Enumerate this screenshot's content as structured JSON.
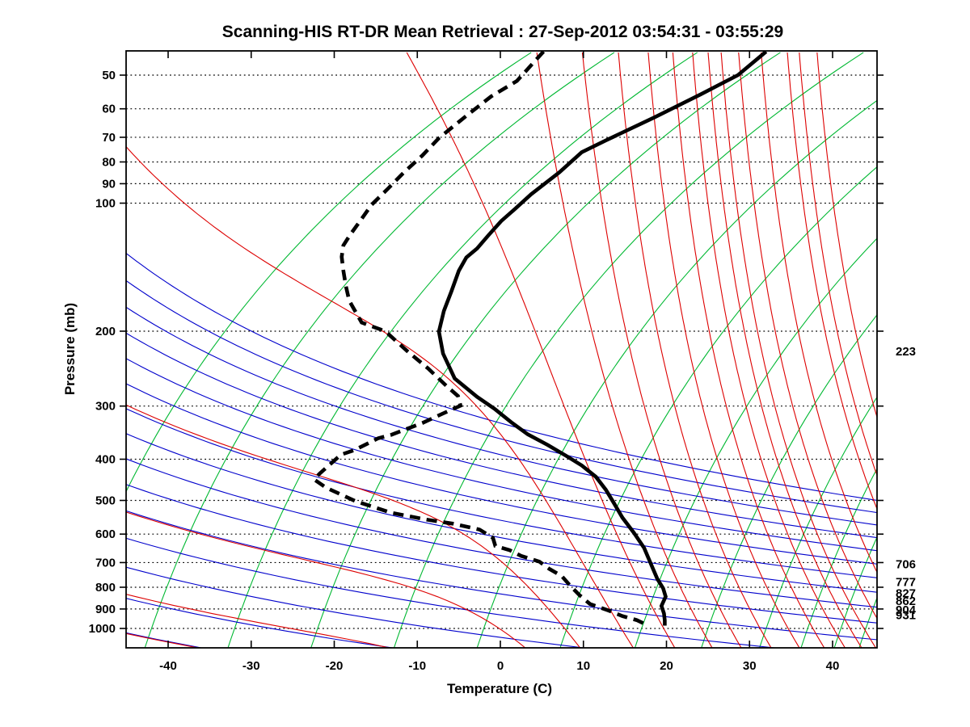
{
  "title": "Scanning-HIS RT-DR Mean Retrieval : 27-Sep-2012 03:54:31 - 03:55:29",
  "axes": {
    "x_label": "Temperature (C)",
    "y_label": "Pressure (mb)",
    "x_ticks": [
      -40,
      -30,
      -20,
      -10,
      0,
      10,
      20,
      30,
      40
    ],
    "y_ticks": [
      50,
      60,
      70,
      80,
      90,
      100,
      200,
      300,
      400,
      500,
      600,
      700,
      800,
      900,
      1000
    ]
  },
  "right_labels": [
    {
      "p": 223,
      "text": "223"
    },
    {
      "p": 706,
      "text": "706"
    },
    {
      "p": 777,
      "text": "777"
    },
    {
      "p": 827,
      "text": "827"
    },
    {
      "p": 862,
      "text": "862"
    },
    {
      "p": 904,
      "text": "904"
    },
    {
      "p": 931,
      "text": "931"
    }
  ],
  "colors": {
    "isotherm_green": "#00b832",
    "dry_adiabat_blue": "#0000cc",
    "moist_adiabat_red": "#dd0000",
    "profile_black": "#000000",
    "isobar_dotted": "#000000"
  },
  "chart_data": {
    "type": "line",
    "title": "Scanning-HIS RT-DR Mean Retrieval : 27-Sep-2012 03:54:31 - 03:55:29",
    "xlabel": "Temperature (C)",
    "ylabel": "Pressure (mb)",
    "xlim": [
      -45.1,
      45.4
    ],
    "pressure_range_mb": [
      44,
      1110
    ],
    "y_scale": "log",
    "grid": "dotted horizontal isobars at labeled pressures",
    "legend_position": "none",
    "series": [
      {
        "name": "temperature",
        "style": "solid",
        "points_p_t": [
          [
            44,
            32.0
          ],
          [
            50,
            28.6
          ],
          [
            55.5,
            24.1
          ],
          [
            62.8,
            18.6
          ],
          [
            71.2,
            12.7
          ],
          [
            75.9,
            9.8
          ],
          [
            84.6,
            7.1
          ],
          [
            95.3,
            3.7
          ],
          [
            103,
            1.8
          ],
          [
            110.2,
            0.1
          ],
          [
            118.8,
            -1.4
          ],
          [
            127.8,
            -2.8
          ],
          [
            134.2,
            -4.1
          ],
          [
            144.2,
            -5.0
          ],
          [
            161.3,
            -5.9
          ],
          [
            179.3,
            -6.8
          ],
          [
            200.4,
            -7.4
          ],
          [
            225.8,
            -6.9
          ],
          [
            258.3,
            -5.5
          ],
          [
            285.4,
            -2.8
          ],
          [
            304.5,
            -0.7
          ],
          [
            327.4,
            1.3
          ],
          [
            349.6,
            3.3
          ],
          [
            370.4,
            5.7
          ],
          [
            392.6,
            7.9
          ],
          [
            413.8,
            9.8
          ],
          [
            440.1,
            11.5
          ],
          [
            471.9,
            12.7
          ],
          [
            504.3,
            13.6
          ],
          [
            548.9,
            14.7
          ],
          [
            596.4,
            16.1
          ],
          [
            646.4,
            17.3
          ],
          [
            703.1,
            18.1
          ],
          [
            764.8,
            18.9
          ],
          [
            804.7,
            19.6
          ],
          [
            841.6,
            19.9
          ],
          [
            885.2,
            19.4
          ],
          [
            921.9,
            19.7
          ],
          [
            957.2,
            19.8
          ],
          [
            985,
            19.8
          ]
        ]
      },
      {
        "name": "dewpoint",
        "style": "dashed",
        "points_p_t": [
          [
            44,
            5.2
          ],
          [
            51.6,
            2.0
          ],
          [
            56.1,
            -1.1
          ],
          [
            62.1,
            -4.0
          ],
          [
            70.3,
            -7.4
          ],
          [
            77.3,
            -9.4
          ],
          [
            84.6,
            -11.6
          ],
          [
            92.3,
            -13.5
          ],
          [
            100.9,
            -15.5
          ],
          [
            110.2,
            -16.9
          ],
          [
            118.8,
            -18.1
          ],
          [
            125.7,
            -18.9
          ],
          [
            133.7,
            -19.1
          ],
          [
            144.2,
            -18.9
          ],
          [
            156.6,
            -18.6
          ],
          [
            169.5,
            -18.2
          ],
          [
            190.9,
            -16.7
          ],
          [
            198.3,
            -14.4
          ],
          [
            203,
            -13.5
          ],
          [
            223.7,
            -11.1
          ],
          [
            244.7,
            -8.7
          ],
          [
            268.9,
            -6.5
          ],
          [
            284.1,
            -5.1
          ],
          [
            299.4,
            -4.8
          ],
          [
            312.9,
            -7.0
          ],
          [
            328.9,
            -9.4
          ],
          [
            350.9,
            -13.2
          ],
          [
            357.1,
            -14.7
          ],
          [
            380.9,
            -17.6
          ],
          [
            390.4,
            -19.2
          ],
          [
            433.1,
            -21.8
          ],
          [
            446.6,
            -22.4
          ],
          [
            466.4,
            -21.0
          ],
          [
            502.4,
            -17.4
          ],
          [
            534,
            -13.2
          ],
          [
            554.3,
            -9.0
          ],
          [
            567.1,
            -5.7
          ],
          [
            585.4,
            -2.5
          ],
          [
            612.1,
            -0.9
          ],
          [
            639.9,
            -0.6
          ],
          [
            654.3,
            1.1
          ],
          [
            675.3,
            2.5
          ],
          [
            696.6,
            4.7
          ],
          [
            724.4,
            5.9
          ],
          [
            753.2,
            7.4
          ],
          [
            792.7,
            8.4
          ],
          [
            833.9,
            9.5
          ],
          [
            876.2,
            10.8
          ],
          [
            907.2,
            13.0
          ],
          [
            935.2,
            14.7
          ],
          [
            955.4,
            16.4
          ],
          [
            975.6,
            17.4
          ],
          [
            987,
            17.6
          ]
        ]
      }
    ],
    "background": {
      "isobars_mb": [
        50,
        60,
        70,
        80,
        90,
        100,
        200,
        300,
        400,
        500,
        600,
        700,
        800,
        900,
        1000
      ],
      "green_line_surface_temps": [
        -52,
        -42,
        -32,
        -22,
        -12,
        -2,
        8,
        17,
        25,
        32,
        37,
        41,
        44
      ],
      "blue_adiabat_surface_temps": [
        -59,
        -36,
        -13,
        10,
        33,
        56,
        79,
        102,
        125,
        148,
        171,
        194,
        217,
        240,
        263,
        286
      ],
      "red_moist_extra_surface_temps": [
        3,
        16,
        21,
        25.5,
        29,
        36,
        39,
        41.5,
        43.5,
        45.2,
        47.5,
        50.5,
        54,
        58
      ],
      "red_paired_offset_deg": -0.4
    }
  }
}
